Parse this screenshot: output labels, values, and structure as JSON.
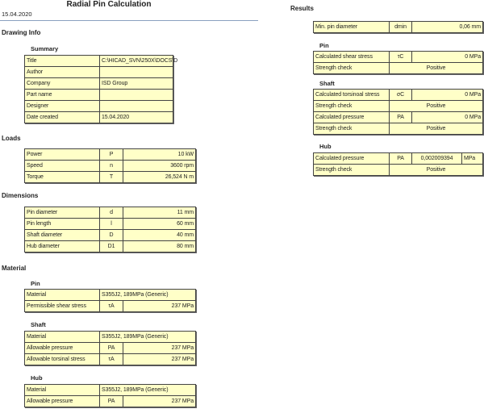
{
  "header": {
    "title": "Radial Pin Calculation",
    "date": "15.04.2020"
  },
  "drawing_info": {
    "heading": "Drawing Info",
    "summary": {
      "label": "Summary",
      "rows": [
        {
          "kind": "span",
          "label": "Title",
          "value": "C:\\HICAD_SVN\\250X\\DOCS\\D"
        },
        {
          "kind": "span",
          "label": "Author",
          "value": ""
        },
        {
          "kind": "span",
          "label": "Company",
          "value": "ISD Group"
        },
        {
          "kind": "span",
          "label": "Part name",
          "value": ""
        },
        {
          "kind": "span",
          "label": "Designer",
          "value": ""
        },
        {
          "kind": "span",
          "label": "Date created",
          "value": "15.04.2020"
        }
      ]
    }
  },
  "loads": {
    "heading": "Loads",
    "rows": [
      {
        "kind": "3",
        "label": "Power",
        "symbol": "P",
        "value": "10 kW"
      },
      {
        "kind": "3",
        "label": "Speed",
        "symbol": "n",
        "value": "3600 rpm"
      },
      {
        "kind": "3",
        "label": "Torque",
        "symbol": "T",
        "value": "26,524 N m"
      }
    ]
  },
  "dimensions": {
    "heading": "Dimensions",
    "rows": [
      {
        "kind": "3",
        "label": "Pin diameter",
        "symbol": "d",
        "value": "11 mm"
      },
      {
        "kind": "3",
        "label": "Pin length",
        "symbol": "l",
        "value": "60 mm"
      },
      {
        "kind": "3",
        "label": "Shaft diameter",
        "symbol": "D",
        "value": "40 mm"
      },
      {
        "kind": "3",
        "label": "Hub diameter",
        "symbol": "D1",
        "value": "80 mm"
      }
    ]
  },
  "material": {
    "heading": "Material",
    "pin": {
      "label": "Pin",
      "rows": [
        {
          "kind": "span",
          "label": "Material",
          "value": "S355J2, 189MPa (Generic)"
        },
        {
          "kind": "3",
          "label": "Permissible shear stress",
          "symbol": "τA",
          "value": "237 MPa"
        }
      ]
    },
    "shaft": {
      "label": "Shaft",
      "rows": [
        {
          "kind": "span",
          "label": "Material",
          "value": "S355J2, 189MPa (Generic)"
        },
        {
          "kind": "3",
          "label": "Allowable pressure",
          "symbol": "PA",
          "value": "237 MPa"
        },
        {
          "kind": "3",
          "label": "Allowable torsinal stress",
          "symbol": "τA",
          "value": "237 MPa"
        }
      ]
    },
    "hub": {
      "label": "Hub",
      "rows": [
        {
          "kind": "span",
          "label": "Material",
          "value": "S355J2, 189MPa (Generic)"
        },
        {
          "kind": "3",
          "label": "Allowable pressure",
          "symbol": "PA",
          "value": "237 MPa"
        }
      ]
    }
  },
  "results": {
    "heading": "Results",
    "min": {
      "rows": [
        {
          "kind": "3",
          "label": "Min. pin diameter",
          "symbol": "dmin",
          "value": "0,06 mm"
        }
      ]
    },
    "pin": {
      "label": "Pin",
      "rows": [
        {
          "kind": "3",
          "label": "Calculated shear stress",
          "symbol": "τC",
          "value": "0 MPa"
        },
        {
          "kind": "check",
          "label": "Strength check",
          "value": "Positive"
        }
      ]
    },
    "shaft": {
      "label": "Shaft",
      "rows": [
        {
          "kind": "3",
          "label": "Calculated torsinoal stress",
          "symbol": "σC",
          "value": "0 MPa"
        },
        {
          "kind": "check",
          "label": "Strength check",
          "value": "Positive"
        },
        {
          "kind": "3",
          "label": "Calculated pressure",
          "symbol": "PA",
          "value": "0 MPa"
        },
        {
          "kind": "check",
          "label": "Strength check",
          "value": "Positive"
        }
      ]
    },
    "hub": {
      "label": "Hub",
      "rows": [
        {
          "kind": "4",
          "label": "Calculated pressure",
          "symbol": "PA",
          "value": "0,002009394",
          "unit": "MPa"
        },
        {
          "kind": "check",
          "label": "Strength check",
          "value": "Positive"
        }
      ]
    }
  },
  "colors": {
    "cell_bg": "#ffffc8",
    "border": "#444444"
  }
}
